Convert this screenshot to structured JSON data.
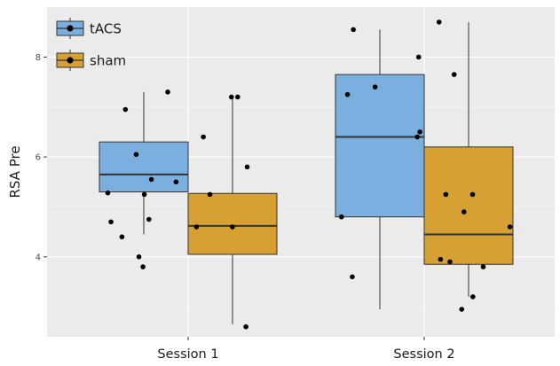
{
  "chart_data": {
    "type": "boxplot",
    "title": "",
    "xlabel": "",
    "ylabel": "RSA Pre",
    "categories": [
      "Session 1",
      "Session 2"
    ],
    "ylim": [
      2.4,
      9.0
    ],
    "yticks": [
      4,
      6,
      8
    ],
    "grid": true,
    "legend_position": "top-left",
    "series": [
      {
        "name": "tACS",
        "color": "#7aafe0",
        "boxes": [
          {
            "category": "Session 1",
            "min": 4.45,
            "q1": 5.3,
            "median": 5.65,
            "q3": 6.3,
            "max": 7.3
          },
          {
            "category": "Session 2",
            "min": 2.95,
            "q1": 4.8,
            "median": 6.4,
            "q3": 7.65,
            "max": 8.55
          }
        ]
      },
      {
        "name": "sham",
        "color": "#d6a033",
        "boxes": [
          {
            "category": "Session 1",
            "min": 2.65,
            "q1": 4.05,
            "median": 4.62,
            "q3": 5.27,
            "max": 7.2
          },
          {
            "category": "Session 2",
            "min": 3.2,
            "q1": 3.85,
            "median": 4.45,
            "q3": 6.2,
            "max": 8.7
          }
        ]
      }
    ],
    "points": [
      {
        "category": "Session 1",
        "group": "tACS",
        "values": [
          3.8,
          4.75,
          4.7,
          4.4,
          4.0,
          5.25,
          5.28,
          5.5,
          5.55,
          6.05,
          6.95,
          7.3
        ]
      },
      {
        "category": "Session 1",
        "group": "sham",
        "values": [
          2.6,
          4.6,
          4.6,
          5.25,
          5.8,
          6.4,
          7.2,
          7.2
        ]
      },
      {
        "category": "Session 2",
        "group": "tACS",
        "values": [
          3.6,
          4.8,
          6.4,
          6.5,
          7.25,
          7.4,
          8.0,
          8.55
        ]
      },
      {
        "category": "Session 2",
        "group": "sham",
        "values": [
          2.95,
          3.2,
          3.8,
          3.9,
          3.95,
          4.6,
          4.9,
          5.25,
          5.25,
          7.65,
          8.7
        ]
      }
    ]
  },
  "legend": {
    "items": [
      {
        "label": "tACS",
        "color": "#7aafe0"
      },
      {
        "label": "sham",
        "color": "#d6a033"
      }
    ]
  }
}
